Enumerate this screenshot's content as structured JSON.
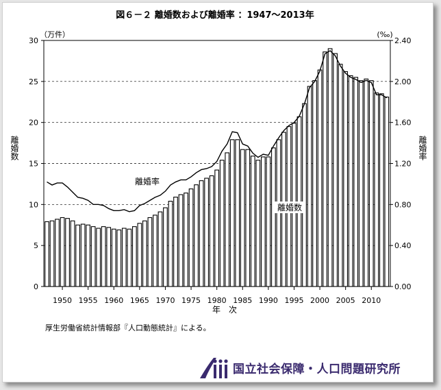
{
  "chart_data": {
    "type": "bar",
    "title": "図６－２ 離婚数および離婚率 ：1947～2013年",
    "x": [
      1947,
      1948,
      1949,
      1950,
      1951,
      1952,
      1953,
      1954,
      1955,
      1956,
      1957,
      1958,
      1959,
      1960,
      1961,
      1962,
      1963,
      1964,
      1965,
      1966,
      1967,
      1968,
      1969,
      1970,
      1971,
      1972,
      1973,
      1974,
      1975,
      1976,
      1977,
      1978,
      1979,
      1980,
      1981,
      1982,
      1983,
      1984,
      1985,
      1986,
      1987,
      1988,
      1989,
      1990,
      1991,
      1992,
      1993,
      1994,
      1995,
      1996,
      1997,
      1998,
      1999,
      2000,
      2001,
      2002,
      2003,
      2004,
      2005,
      2006,
      2007,
      2008,
      2009,
      2010,
      2011,
      2012,
      2013
    ],
    "x_ticks": [
      1950,
      1955,
      1960,
      1965,
      1970,
      1975,
      1980,
      1985,
      1990,
      1995,
      2000,
      2005,
      2010
    ],
    "xlabel": "年　次",
    "ylabel_left": "離婚数",
    "ylabel_right": "離婚率",
    "unit_left": "（万件）",
    "unit_right": "(‰)",
    "ylim_left": [
      0,
      30
    ],
    "yticks_left": [
      "0",
      "5",
      "10",
      "15",
      "20",
      "25",
      "30"
    ],
    "ylim_right": [
      0,
      2.4
    ],
    "yticks_right": [
      "0.00",
      "0.40",
      "0.80",
      "1.20",
      "1.60",
      "2.00",
      "2.40"
    ],
    "grid": "horizontal dashed",
    "series": [
      {
        "name": "離婚数",
        "type": "bar",
        "axis": "left",
        "values": [
          7.9,
          8.0,
          8.2,
          8.4,
          8.3,
          8.0,
          7.5,
          7.6,
          7.5,
          7.3,
          7.1,
          7.3,
          7.2,
          7.0,
          6.9,
          7.1,
          7.0,
          7.3,
          7.7,
          8.0,
          8.4,
          8.7,
          9.1,
          9.6,
          10.4,
          10.9,
          11.2,
          11.4,
          11.9,
          12.4,
          12.9,
          13.2,
          13.5,
          14.2,
          15.4,
          16.3,
          17.9,
          17.9,
          16.7,
          16.7,
          15.9,
          15.4,
          15.8,
          15.8,
          16.9,
          17.9,
          18.8,
          19.5,
          19.9,
          20.7,
          22.3,
          24.4,
          25.1,
          26.4,
          28.6,
          29.0,
          28.4,
          27.1,
          26.2,
          25.7,
          25.5,
          25.1,
          25.3,
          25.1,
          23.6,
          23.5,
          23.1
        ]
      },
      {
        "name": "離婚率",
        "type": "line",
        "axis": "right",
        "values": [
          1.02,
          0.99,
          1.01,
          1.01,
          0.97,
          0.92,
          0.87,
          0.86,
          0.84,
          0.8,
          0.8,
          0.79,
          0.76,
          0.74,
          0.74,
          0.75,
          0.73,
          0.74,
          0.79,
          0.81,
          0.84,
          0.87,
          0.89,
          0.93,
          0.99,
          1.02,
          1.04,
          1.04,
          1.07,
          1.11,
          1.14,
          1.15,
          1.17,
          1.22,
          1.32,
          1.39,
          1.51,
          1.5,
          1.39,
          1.37,
          1.3,
          1.26,
          1.29,
          1.28,
          1.37,
          1.45,
          1.52,
          1.57,
          1.6,
          1.66,
          1.78,
          1.94,
          2.0,
          2.1,
          2.27,
          2.3,
          2.25,
          2.15,
          2.08,
          2.04,
          2.02,
          1.99,
          2.01,
          1.99,
          1.87,
          1.87,
          1.84
        ]
      }
    ],
    "annotations": {
      "rate_label": "離婚率",
      "count_label": "離婚数"
    }
  },
  "source_note": "厚生労働省統計情報部『人口動態統計』による。",
  "footer": {
    "org_name": "国立社会保障・人口問題研究所",
    "logo_icon": "ipss-logo-icon"
  }
}
